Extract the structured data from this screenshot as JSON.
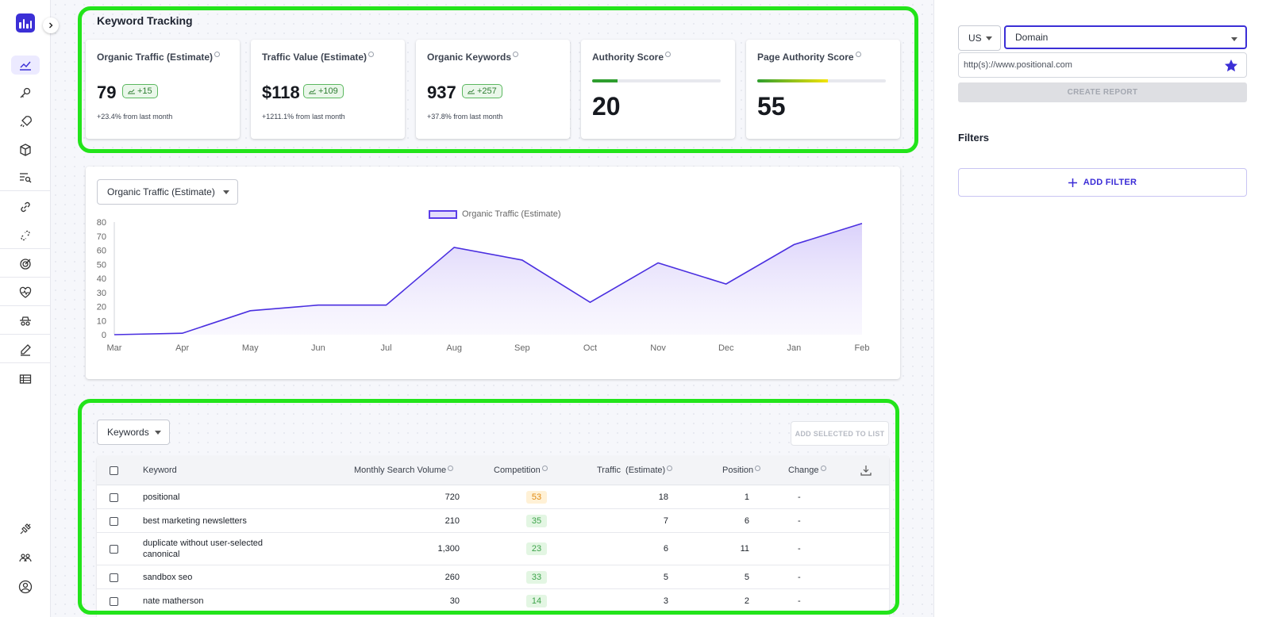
{
  "sidebar": {
    "items": [
      {
        "name": "trend-chart-icon",
        "active": true
      },
      {
        "name": "key-icon"
      },
      {
        "name": "rocket-icon"
      },
      {
        "name": "cube-icon"
      },
      {
        "name": "search-list-icon"
      },
      {
        "name": "link-icon"
      },
      {
        "name": "broken-link-icon"
      },
      {
        "name": "target-icon"
      },
      {
        "name": "heart-pulse-icon"
      },
      {
        "name": "spy-icon"
      },
      {
        "name": "pencil-icon"
      },
      {
        "name": "table-icon"
      }
    ],
    "bottom_items": [
      {
        "name": "integration-icon"
      },
      {
        "name": "team-icon"
      },
      {
        "name": "account-icon"
      }
    ]
  },
  "panel": {
    "title": "Keyword Tracking",
    "metrics": [
      {
        "label": "Organic Traffic (Estimate)",
        "value": "79",
        "delta": "+15",
        "sub": "+23.4% from last month"
      },
      {
        "label": "Traffic Value (Estimate)",
        "value": "$118",
        "delta": "+109",
        "sub": "+1211.1% from last month"
      },
      {
        "label": "Organic Keywords",
        "value": "937",
        "delta": "+257",
        "sub": "+37.8% from last month"
      },
      {
        "label": "Authority Score",
        "value": "20",
        "progress": 0.2
      },
      {
        "label": "Page Authority Score",
        "value": "55",
        "progress": 0.55
      }
    ]
  },
  "chart": {
    "selector": "Organic Traffic (Estimate)",
    "legend": "Organic Traffic (Estimate)"
  },
  "chart_data": {
    "type": "area",
    "title": "",
    "xlabel": "",
    "ylabel": "",
    "categories": [
      "Mar",
      "Apr",
      "May",
      "Jun",
      "Jul",
      "Aug",
      "Sep",
      "Oct",
      "Nov",
      "Dec",
      "Jan",
      "Feb"
    ],
    "series": [
      {
        "name": "Organic Traffic (Estimate)",
        "values": [
          0,
          1,
          17,
          21,
          21,
          62,
          53,
          23,
          51,
          36,
          64,
          79
        ],
        "color": "#4a2fe0"
      }
    ],
    "ylim": [
      0,
      80
    ],
    "yticks": [
      0,
      10,
      20,
      30,
      40,
      50,
      60,
      70,
      80
    ],
    "grid": false,
    "legend_position": "top-center"
  },
  "table": {
    "selector": "Keywords",
    "add_button": "ADD SELECTED TO LIST",
    "headers": {
      "keyword": "Keyword",
      "volume": "Monthly Search Volume",
      "competition": "Competition",
      "traffic": "Traffic  (Estimate)",
      "position": "Position",
      "change": "Change"
    },
    "rows": [
      {
        "keyword": "positional",
        "volume": "720",
        "competition": "53",
        "level": "orange",
        "traffic": "18",
        "position": "1",
        "change": "-"
      },
      {
        "keyword": "best marketing newsletters",
        "volume": "210",
        "competition": "35",
        "level": "green",
        "traffic": "7",
        "position": "6",
        "change": "-"
      },
      {
        "keyword": "duplicate without user-selected canonical",
        "volume": "1,300",
        "competition": "23",
        "level": "green",
        "traffic": "6",
        "position": "11",
        "change": "-"
      },
      {
        "keyword": "sandbox seo",
        "volume": "260",
        "competition": "33",
        "level": "green",
        "traffic": "5",
        "position": "5",
        "change": "-"
      },
      {
        "keyword": "nate matherson",
        "volume": "30",
        "competition": "14",
        "level": "green",
        "traffic": "3",
        "position": "2",
        "change": "-"
      }
    ]
  },
  "right_panel": {
    "country": "US",
    "mode": "Domain",
    "url": "http(s)://www.positional.com",
    "create_report": "CREATE REPORT",
    "filters_title": "Filters",
    "add_filter": "ADD FILTER"
  },
  "colors": {
    "accent": "#3b2fd6",
    "highlight": "#22e41a",
    "line": "#4a2fe0"
  }
}
